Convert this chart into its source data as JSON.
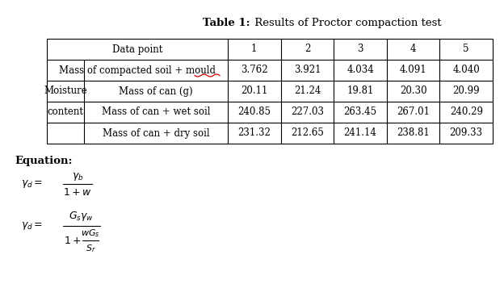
{
  "title_bold": "Table 1:",
  "title_normal": " Results of Proctor compaction test",
  "col_headers": [
    "Data point",
    "1",
    "2",
    "3",
    "4",
    "5"
  ],
  "rows": [
    [
      "Mass of compacted soil + mould",
      "3.762",
      "3.921",
      "4.034",
      "4.091",
      "4.040"
    ],
    [
      "Moisture",
      "Mass of can (g)",
      "20.11",
      "21.24",
      "19.81",
      "20.30",
      "20.99"
    ],
    [
      "content",
      "Mass of can + wet soil",
      "240.85",
      "227.03",
      "263.45",
      "267.01",
      "240.29"
    ],
    [
      "",
      "Mass of can + dry soil",
      "231.32",
      "212.65",
      "241.14",
      "238.81",
      "209.33"
    ]
  ],
  "bg_color": "#ffffff",
  "line_color": "#000000",
  "text_color": "#000000",
  "mould_color": "#cc0000",
  "font_size": 8.5,
  "title_font_size": 9.5,
  "eq_font_size": 9.0
}
